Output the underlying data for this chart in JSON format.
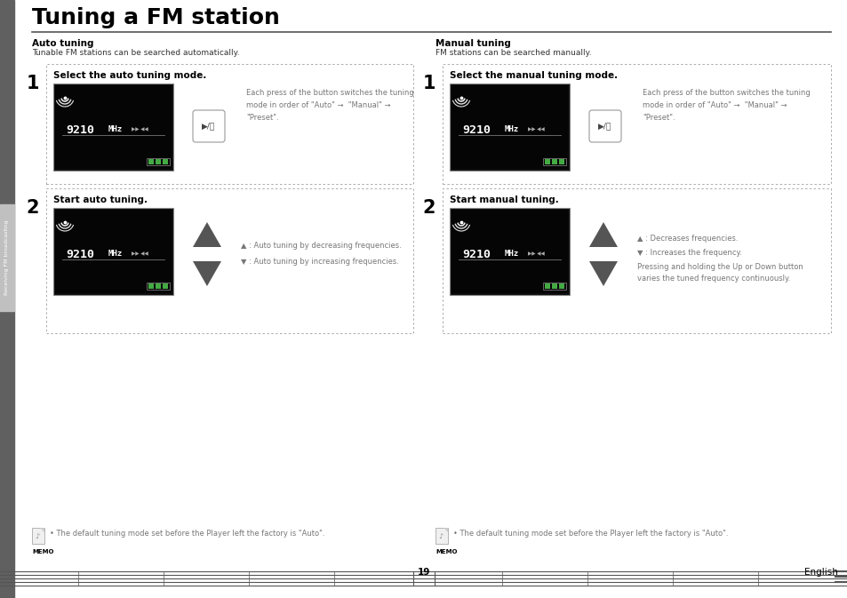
{
  "title": "Tuning a FM station",
  "sidebar_text": "Receiving FM broadcasting",
  "left_section_title": "Auto tuning",
  "left_section_subtitle": "Tunable FM stations can be searched automatically.",
  "right_section_title": "Manual tuning",
  "right_section_subtitle": "FM stations can be searched manually.",
  "step1_left_label": "1",
  "step1_left_title": "Select the auto tuning mode.",
  "step1_left_desc": "Each press of the button switches the tuning\nmode in order of \"Auto\" →  \"Manual\" →\n\"Preset\".",
  "step2_left_label": "2",
  "step2_left_title": "Start auto tuning.",
  "step2_left_up_desc": "▲ : Auto tuning by decreasing frequencies.",
  "step2_left_down_desc": "▼ : Auto tuning by increasing frequencies.",
  "step1_right_label": "1",
  "step1_right_title": "Select the manual tuning mode.",
  "step1_right_desc": "Each press of the button switches the tuning\nmode in order of \"Auto\" →  \"Manual\" →\n\"Preset\".",
  "step2_right_label": "2",
  "step2_right_title": "Start manual tuning.",
  "step2_right_up_desc": "▲ : Decreases frequencies.",
  "step2_right_down_desc": "▼ : Increases the frequency.",
  "step2_right_extra": "Pressing and holding the Up or Down button\nvaries the tuned frequency continuously.",
  "memo_text": "• The default tuning mode set before the Player left the factory is \"Auto\".",
  "freq_text": "9210MHz",
  "page_number": "19",
  "english_text": "English",
  "bg_color": "#ffffff",
  "sidebar_color": "#606060",
  "sidebar_light": "#c0c0c0",
  "box_border_color": "#aaaaaa",
  "screen_bg": "#0a0a0a",
  "title_color": "#000000",
  "subtitle_color": "#333333",
  "bold_label_color": "#000000",
  "desc_color": "#777777",
  "arrow_color": "#555555",
  "battery_green": "#44aa44",
  "bottom_line_color": "#555555"
}
